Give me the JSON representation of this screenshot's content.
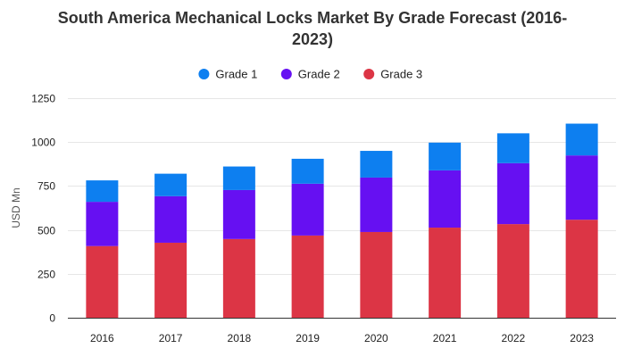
{
  "chart_data": {
    "type": "bar",
    "stacked": true,
    "title_lines": [
      "South America Mechanical Locks Market By Grade Forecast (2016-",
      "2023)"
    ],
    "xlabel": "",
    "ylabel": "USD Mn",
    "ylim": [
      0,
      1250
    ],
    "yticks": [
      0,
      250,
      500,
      750,
      1000,
      1250
    ],
    "grid": true,
    "legend_position": "top-center",
    "categories": [
      "2016",
      "2017",
      "2018",
      "2019",
      "2020",
      "2021",
      "2022",
      "2023"
    ],
    "series": [
      {
        "name": "Grade 3",
        "color": "#dc3545",
        "values": [
          408,
          427,
          448,
          468,
          488,
          513,
          533,
          558
        ]
      },
      {
        "name": "Grade 2",
        "color": "#6610f2",
        "values": [
          252,
          265,
          279,
          295,
          310,
          326,
          347,
          366
        ]
      },
      {
        "name": "Grade 1",
        "color": "#0d7ff0",
        "values": [
          122,
          128,
          134,
          142,
          152,
          158,
          170,
          181
        ]
      }
    ],
    "legend_order": [
      "Grade 1",
      "Grade 2",
      "Grade 3"
    ]
  }
}
